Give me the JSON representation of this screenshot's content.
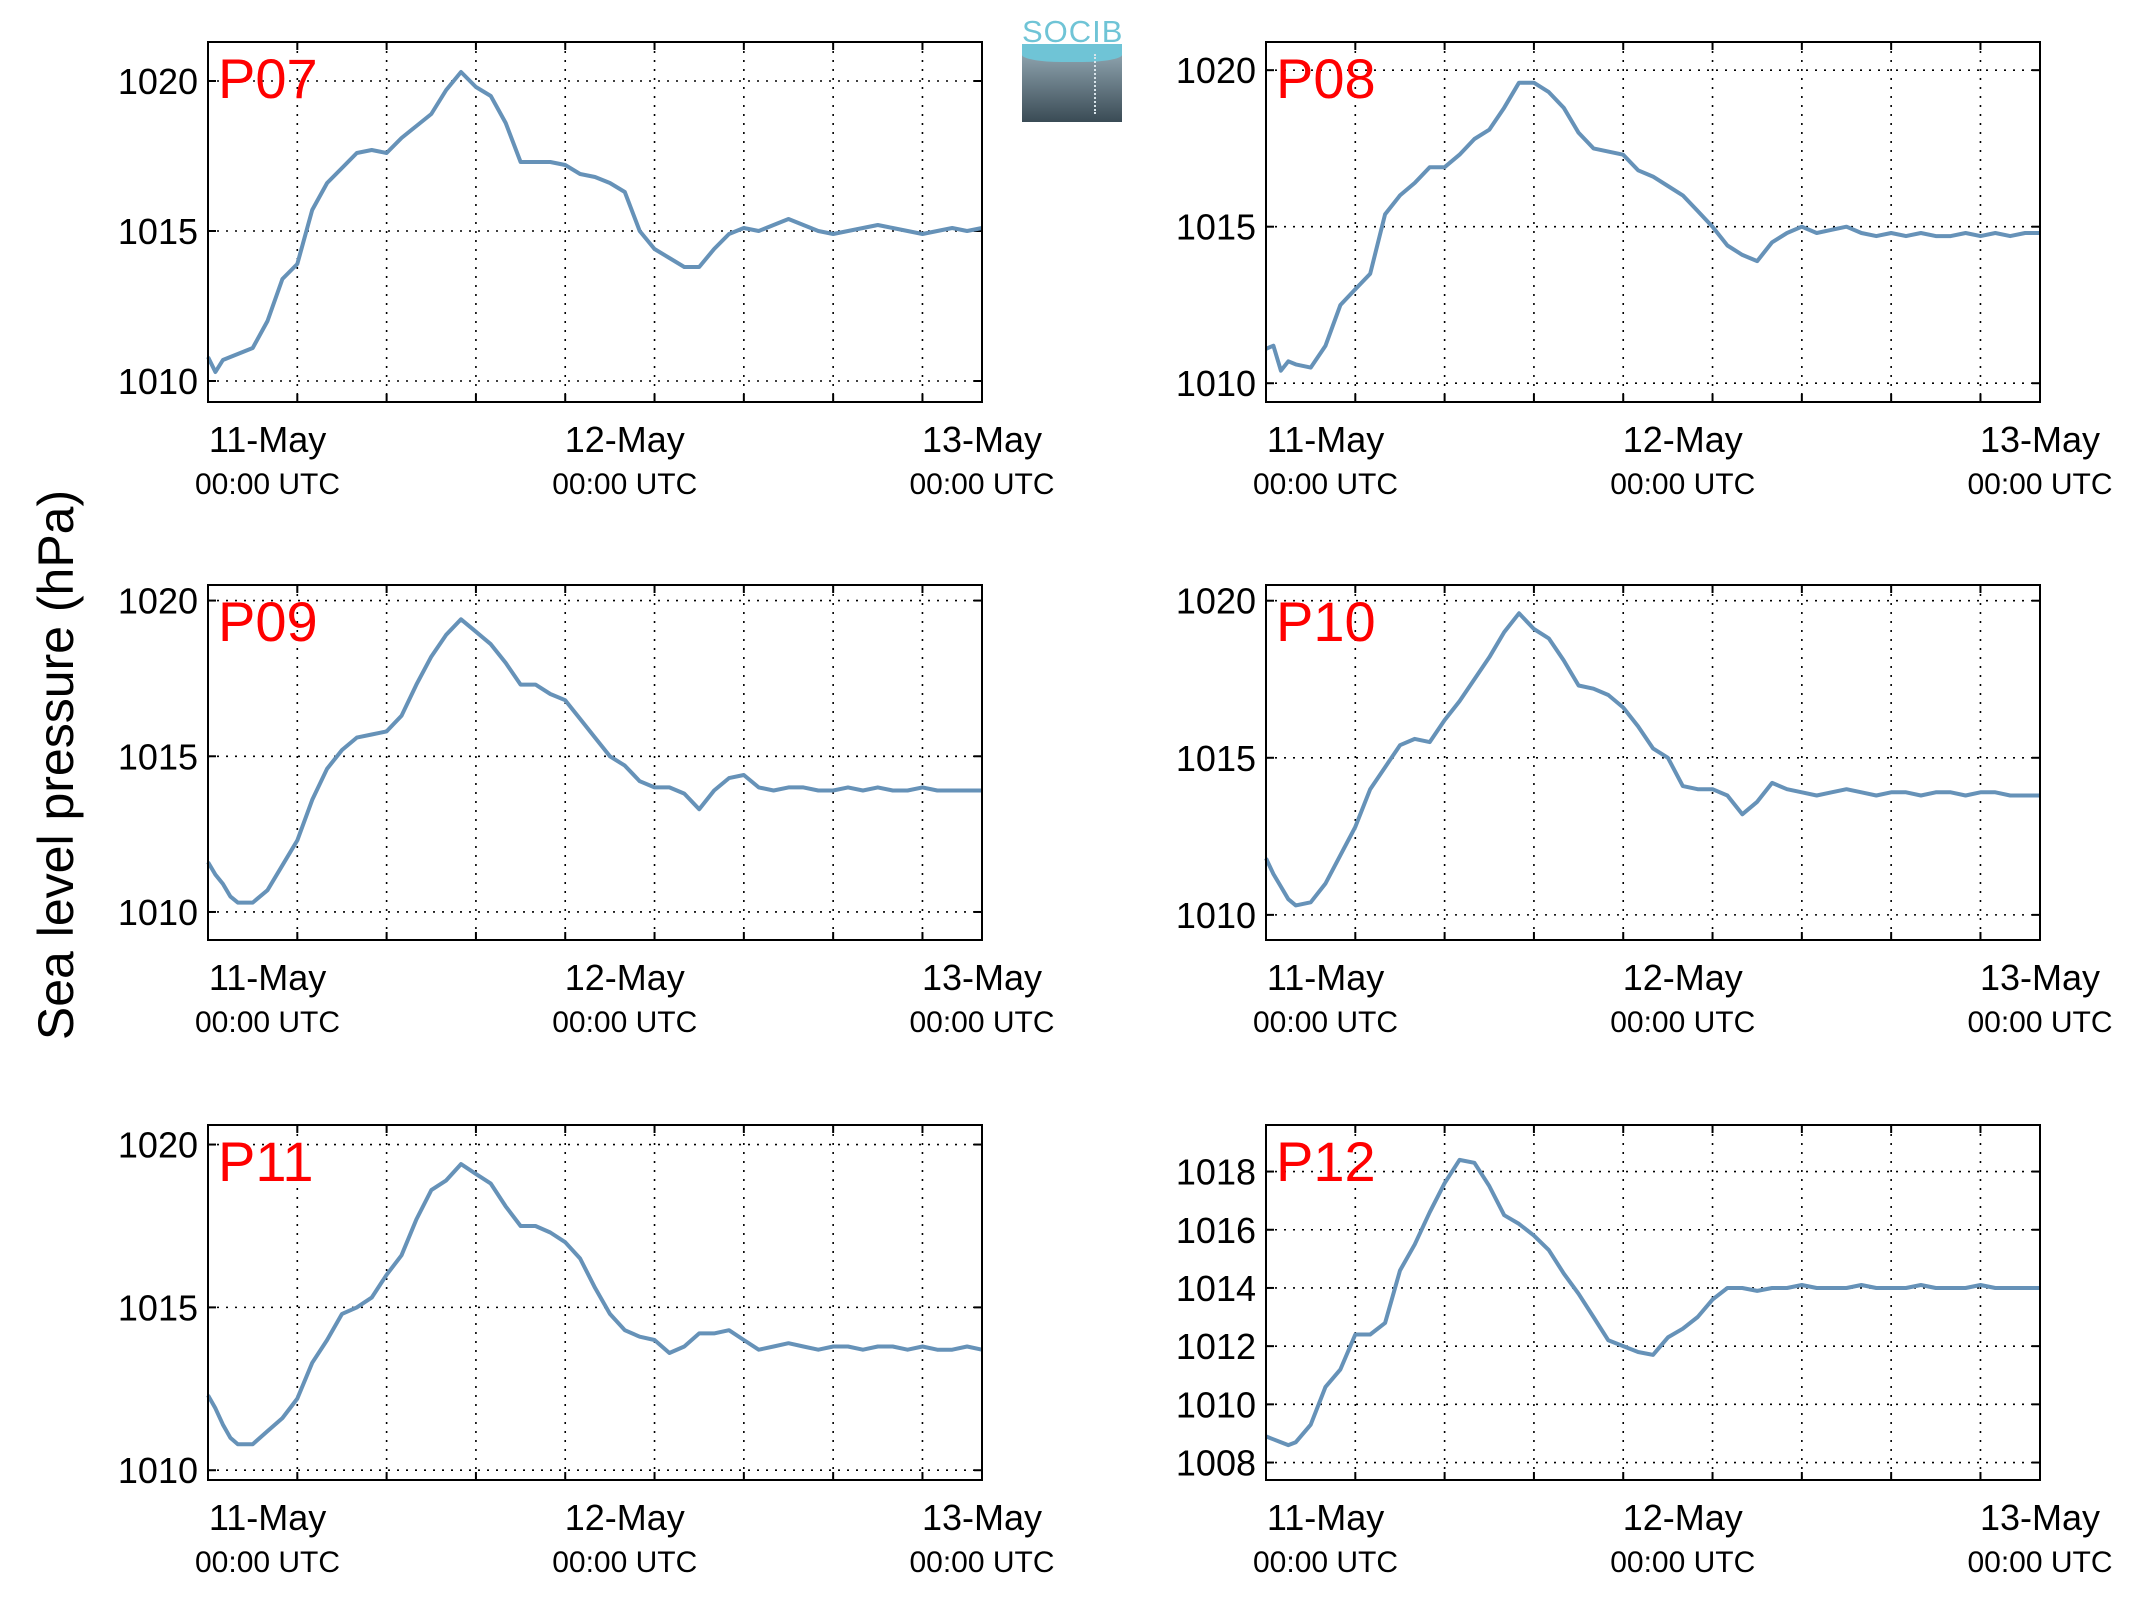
{
  "figure": {
    "ylabel": "Sea level pressure (hPa)",
    "logo_text": "SOCIB",
    "line_color": "#6692b8",
    "station_label_color": "#ff0000"
  },
  "chart_data": [
    {
      "type": "line",
      "station": "P07",
      "xticks": [
        {
          "line1": "11-May",
          "line2": "00:00 UTC",
          "hours": 0
        },
        {
          "line1": "12-May",
          "line2": "00:00 UTC",
          "hours": 24
        },
        {
          "line1": "13-May",
          "line2": "00:00 UTC",
          "hours": 48
        }
      ],
      "xlim": [
        -4,
        48
      ],
      "ylim": [
        1009.3,
        1021.3
      ],
      "yticks": [
        1010,
        1015,
        1020
      ],
      "grid": true,
      "x": [
        -4.0,
        -3.5,
        -3.0,
        -2.5,
        -2.0,
        -1.0,
        0.0,
        1.0,
        2.0,
        3.0,
        4.0,
        5.0,
        6.0,
        7.0,
        8.0,
        9.0,
        10.0,
        11.0,
        12.0,
        13.0,
        14.0,
        15.0,
        16.0,
        17.0,
        18.0,
        19.0,
        20.0,
        21.0,
        22.0,
        23.0,
        24.0,
        25.0,
        26.0,
        27.0,
        28.0,
        29.0,
        30.0,
        31.0,
        32.0,
        33.0,
        34.0,
        35.0,
        36.0,
        37.0,
        38.0,
        39.0,
        40.0,
        41.0,
        42.0,
        43.0,
        44.0,
        45.0,
        46.0,
        47.0,
        48.0
      ],
      "y": [
        1010.8,
        1010.3,
        1010.7,
        1010.8,
        1010.9,
        1011.1,
        1012.0,
        1013.4,
        1013.9,
        1015.7,
        1016.6,
        1017.1,
        1017.6,
        1017.7,
        1017.6,
        1018.1,
        1018.5,
        1018.9,
        1019.7,
        1020.3,
        1019.8,
        1019.5,
        1018.6,
        1017.3,
        1017.3,
        1017.3,
        1017.2,
        1016.9,
        1016.8,
        1016.6,
        1016.3,
        1015.0,
        1014.4,
        1014.1,
        1013.8,
        1013.8,
        1014.4,
        1014.9,
        1015.1,
        1015.0,
        1015.2,
        1015.4,
        1015.2,
        1015.0,
        1014.9,
        1015.0,
        1015.1,
        1015.2,
        1015.1,
        1015.0,
        1014.9,
        1015.0,
        1015.1,
        1015.0,
        1015.1
      ]
    },
    {
      "type": "line",
      "station": "P08",
      "xticks": [
        {
          "line1": "11-May",
          "line2": "00:00 UTC",
          "hours": 0
        },
        {
          "line1": "12-May",
          "line2": "00:00 UTC",
          "hours": 24
        },
        {
          "line1": "13-May",
          "line2": "00:00 UTC",
          "hours": 48
        }
      ],
      "xlim": [
        -4,
        48
      ],
      "ylim": [
        1009.4,
        1020.9
      ],
      "yticks": [
        1010,
        1015,
        1020
      ],
      "grid": true,
      "x": [
        -4.0,
        -3.5,
        -3.0,
        -2.5,
        -2.0,
        -1.0,
        0.0,
        1.0,
        2.0,
        3.0,
        4.0,
        5.0,
        6.0,
        7.0,
        8.0,
        9.0,
        10.0,
        11.0,
        12.0,
        13.0,
        14.0,
        15.0,
        16.0,
        17.0,
        18.0,
        19.0,
        20.0,
        21.0,
        22.0,
        23.0,
        24.0,
        25.0,
        26.0,
        27.0,
        28.0,
        29.0,
        30.0,
        31.0,
        32.0,
        33.0,
        34.0,
        35.0,
        36.0,
        37.0,
        38.0,
        39.0,
        40.0,
        41.0,
        42.0,
        43.0,
        44.0,
        45.0,
        46.0,
        47.0,
        48.0
      ],
      "y": [
        1011.1,
        1011.2,
        1010.4,
        1010.7,
        1010.6,
        1010.5,
        1011.2,
        1012.5,
        1013.0,
        1013.5,
        1015.4,
        1016.0,
        1016.4,
        1016.9,
        1016.9,
        1017.3,
        1017.8,
        1018.1,
        1018.8,
        1019.6,
        1019.6,
        1019.3,
        1018.8,
        1018.0,
        1017.5,
        1017.4,
        1017.3,
        1016.8,
        1016.6,
        1016.3,
        1016.0,
        1015.5,
        1015.0,
        1014.4,
        1014.1,
        1013.9,
        1014.5,
        1014.8,
        1015.0,
        1014.8,
        1014.9,
        1015.0,
        1014.8,
        1014.7,
        1014.8,
        1014.7,
        1014.8,
        1014.7,
        1014.7,
        1014.8,
        1014.7,
        1014.8,
        1014.7,
        1014.8,
        1014.8
      ]
    },
    {
      "type": "line",
      "station": "P09",
      "xticks": [
        {
          "line1": "11-May",
          "line2": "00:00 UTC",
          "hours": 0
        },
        {
          "line1": "12-May",
          "line2": "00:00 UTC",
          "hours": 24
        },
        {
          "line1": "13-May",
          "line2": "00:00 UTC",
          "hours": 48
        }
      ],
      "xlim": [
        -4,
        48
      ],
      "ylim": [
        1009.1,
        1020.5
      ],
      "yticks": [
        1010,
        1015,
        1020
      ],
      "grid": true,
      "x": [
        -4.0,
        -3.5,
        -3.0,
        -2.5,
        -2.0,
        -1.0,
        0.0,
        1.0,
        2.0,
        3.0,
        4.0,
        5.0,
        6.0,
        7.0,
        8.0,
        9.0,
        10.0,
        11.0,
        12.0,
        13.0,
        14.0,
        15.0,
        16.0,
        17.0,
        18.0,
        19.0,
        20.0,
        21.0,
        22.0,
        23.0,
        24.0,
        25.0,
        26.0,
        27.0,
        28.0,
        29.0,
        30.0,
        31.0,
        32.0,
        33.0,
        34.0,
        35.0,
        36.0,
        37.0,
        38.0,
        39.0,
        40.0,
        41.0,
        42.0,
        43.0,
        44.0,
        45.0,
        46.0,
        47.0,
        48.0
      ],
      "y": [
        1011.6,
        1011.2,
        1010.9,
        1010.5,
        1010.3,
        1010.3,
        1010.7,
        1011.5,
        1012.3,
        1013.6,
        1014.6,
        1015.2,
        1015.6,
        1015.7,
        1015.8,
        1016.3,
        1017.3,
        1018.2,
        1018.9,
        1019.4,
        1019.0,
        1018.6,
        1018.0,
        1017.3,
        1017.3,
        1017.0,
        1016.8,
        1016.2,
        1015.6,
        1015.0,
        1014.7,
        1014.2,
        1014.0,
        1014.0,
        1013.8,
        1013.3,
        1013.9,
        1014.3,
        1014.4,
        1014.0,
        1013.9,
        1014.0,
        1014.0,
        1013.9,
        1013.9,
        1014.0,
        1013.9,
        1014.0,
        1013.9,
        1013.9,
        1014.0,
        1013.9,
        1013.9,
        1013.9,
        1013.9
      ]
    },
    {
      "type": "line",
      "station": "P10",
      "xticks": [
        {
          "line1": "11-May",
          "line2": "00:00 UTC",
          "hours": 0
        },
        {
          "line1": "12-May",
          "line2": "00:00 UTC",
          "hours": 24
        },
        {
          "line1": "13-May",
          "line2": "00:00 UTC",
          "hours": 48
        }
      ],
      "xlim": [
        -4,
        48
      ],
      "ylim": [
        1009.2,
        1020.5
      ],
      "yticks": [
        1010,
        1015,
        1020
      ],
      "grid": true,
      "x": [
        -4.0,
        -3.5,
        -3.0,
        -2.5,
        -2.0,
        -1.0,
        0.0,
        1.0,
        2.0,
        3.0,
        4.0,
        5.0,
        6.0,
        7.0,
        8.0,
        9.0,
        10.0,
        11.0,
        12.0,
        13.0,
        14.0,
        15.0,
        16.0,
        17.0,
        18.0,
        19.0,
        20.0,
        21.0,
        22.0,
        23.0,
        24.0,
        25.0,
        26.0,
        27.0,
        28.0,
        29.0,
        30.0,
        31.0,
        32.0,
        33.0,
        34.0,
        35.0,
        36.0,
        37.0,
        38.0,
        39.0,
        40.0,
        41.0,
        42.0,
        43.0,
        44.0,
        45.0,
        46.0,
        47.0,
        48.0
      ],
      "y": [
        1011.8,
        1011.3,
        1010.9,
        1010.5,
        1010.3,
        1010.4,
        1011.0,
        1011.9,
        1012.8,
        1014.0,
        1014.7,
        1015.4,
        1015.6,
        1015.5,
        1016.2,
        1016.8,
        1017.5,
        1018.2,
        1019.0,
        1019.6,
        1019.1,
        1018.8,
        1018.1,
        1017.3,
        1017.2,
        1017.0,
        1016.6,
        1016.0,
        1015.3,
        1015.0,
        1014.1,
        1014.0,
        1014.0,
        1013.8,
        1013.2,
        1013.6,
        1014.2,
        1014.0,
        1013.9,
        1013.8,
        1013.9,
        1014.0,
        1013.9,
        1013.8,
        1013.9,
        1013.9,
        1013.8,
        1013.9,
        1013.9,
        1013.8,
        1013.9,
        1013.9,
        1013.8,
        1013.8,
        1013.8
      ]
    },
    {
      "type": "line",
      "station": "P11",
      "xticks": [
        {
          "line1": "11-May",
          "line2": "00:00 UTC",
          "hours": 0
        },
        {
          "line1": "12-May",
          "line2": "00:00 UTC",
          "hours": 24
        },
        {
          "line1": "13-May",
          "line2": "00:00 UTC",
          "hours": 48
        }
      ],
      "xlim": [
        -4,
        48
      ],
      "ylim": [
        1009.7,
        1020.6
      ],
      "yticks": [
        1010,
        1015,
        1020
      ],
      "grid": true,
      "x": [
        -4.0,
        -3.5,
        -3.0,
        -2.5,
        -2.0,
        -1.0,
        0.0,
        1.0,
        2.0,
        3.0,
        4.0,
        5.0,
        6.0,
        7.0,
        8.0,
        9.0,
        10.0,
        11.0,
        12.0,
        13.0,
        14.0,
        15.0,
        16.0,
        17.0,
        18.0,
        19.0,
        20.0,
        21.0,
        22.0,
        23.0,
        24.0,
        25.0,
        26.0,
        27.0,
        28.0,
        29.0,
        30.0,
        31.0,
        32.0,
        33.0,
        34.0,
        35.0,
        36.0,
        37.0,
        38.0,
        39.0,
        40.0,
        41.0,
        42.0,
        43.0,
        44.0,
        45.0,
        46.0,
        47.0,
        48.0
      ],
      "y": [
        1012.3,
        1011.9,
        1011.4,
        1011.0,
        1010.8,
        1010.8,
        1011.2,
        1011.6,
        1012.2,
        1013.3,
        1014.0,
        1014.8,
        1015.0,
        1015.3,
        1016.0,
        1016.6,
        1017.7,
        1018.6,
        1018.9,
        1019.4,
        1019.1,
        1018.8,
        1018.1,
        1017.5,
        1017.5,
        1017.3,
        1017.0,
        1016.5,
        1015.6,
        1014.8,
        1014.3,
        1014.1,
        1014.0,
        1013.6,
        1013.8,
        1014.2,
        1014.2,
        1014.3,
        1014.0,
        1013.7,
        1013.8,
        1013.9,
        1013.8,
        1013.7,
        1013.8,
        1013.8,
        1013.7,
        1013.8,
        1013.8,
        1013.7,
        1013.8,
        1013.7,
        1013.7,
        1013.8,
        1013.7
      ]
    },
    {
      "type": "line",
      "station": "P12",
      "xticks": [
        {
          "line1": "11-May",
          "line2": "00:00 UTC",
          "hours": 0
        },
        {
          "line1": "12-May",
          "line2": "00:00 UTC",
          "hours": 24
        },
        {
          "line1": "13-May",
          "line2": "00:00 UTC",
          "hours": 48
        }
      ],
      "xlim": [
        -4,
        48
      ],
      "ylim": [
        1007.4,
        1019.6
      ],
      "yticks": [
        1008,
        1010,
        1012,
        1014,
        1016,
        1018
      ],
      "grid": true,
      "x": [
        -4.0,
        -3.5,
        -3.0,
        -2.5,
        -2.0,
        -1.0,
        0.0,
        1.0,
        2.0,
        3.0,
        4.0,
        5.0,
        6.0,
        7.0,
        8.0,
        9.0,
        10.0,
        11.0,
        12.0,
        13.0,
        14.0,
        15.0,
        16.0,
        17.0,
        18.0,
        19.0,
        20.0,
        21.0,
        22.0,
        23.0,
        24.0,
        25.0,
        26.0,
        27.0,
        28.0,
        29.0,
        30.0,
        31.0,
        32.0,
        33.0,
        34.0,
        35.0,
        36.0,
        37.0,
        38.0,
        39.0,
        40.0,
        41.0,
        42.0,
        43.0,
        44.0,
        45.0,
        46.0,
        47.0,
        48.0
      ],
      "y": [
        1008.9,
        1008.8,
        1008.7,
        1008.6,
        1008.7,
        1009.3,
        1010.6,
        1011.2,
        1012.4,
        1012.4,
        1012.8,
        1014.6,
        1015.5,
        1016.6,
        1017.6,
        1018.4,
        1018.3,
        1017.5,
        1016.5,
        1016.2,
        1015.8,
        1015.3,
        1014.5,
        1013.8,
        1013.0,
        1012.2,
        1012.0,
        1011.8,
        1011.7,
        1012.3,
        1012.6,
        1013.0,
        1013.6,
        1014.0,
        1014.0,
        1013.9,
        1014.0,
        1014.0,
        1014.1,
        1014.0,
        1014.0,
        1014.0,
        1014.1,
        1014.0,
        1014.0,
        1014.0,
        1014.1,
        1014.0,
        1014.0,
        1014.0,
        1014.1,
        1014.0,
        1014.0,
        1014.0,
        1014.0
      ]
    }
  ]
}
